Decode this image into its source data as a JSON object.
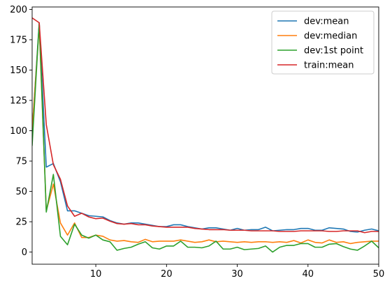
{
  "chart_data": {
    "type": "line",
    "xlim": [
      1,
      50
    ],
    "ylim": [
      -10,
      202
    ],
    "x_ticks": [
      10,
      20,
      30,
      40,
      50
    ],
    "y_ticks": [
      0,
      25,
      50,
      75,
      100,
      125,
      150,
      175,
      200
    ],
    "legend_position": "top-right",
    "grid": false,
    "series": [
      {
        "name": "dev:mean",
        "color": "#1f77b4",
        "x": [
          1,
          2,
          3,
          4,
          5,
          6,
          7,
          8,
          9,
          10,
          11,
          12,
          13,
          14,
          15,
          16,
          17,
          18,
          19,
          20,
          21,
          22,
          23,
          24,
          25,
          26,
          27,
          28,
          29,
          30,
          31,
          32,
          33,
          34,
          35,
          36,
          37,
          38,
          39,
          40,
          41,
          42,
          43,
          44,
          45,
          46,
          47,
          48,
          49,
          50
        ],
        "y": [
          100,
          189,
          70,
          73,
          58,
          34,
          34,
          32,
          30,
          29.5,
          29,
          26,
          24,
          23,
          24,
          24,
          23,
          22,
          21,
          21,
          22.5,
          22.5,
          21,
          20,
          19,
          20,
          20,
          19,
          18,
          19.5,
          18,
          18.5,
          18.5,
          20.5,
          17.5,
          18,
          18.5,
          18.5,
          19.5,
          19.5,
          18,
          18,
          20,
          19.5,
          19,
          17,
          16.5,
          18,
          19,
          17.5
        ]
      },
      {
        "name": "dev:median",
        "color": "#ff7f0e",
        "x": [
          1,
          2,
          3,
          4,
          5,
          6,
          7,
          8,
          9,
          10,
          11,
          12,
          13,
          14,
          15,
          16,
          17,
          18,
          19,
          20,
          21,
          22,
          23,
          24,
          25,
          26,
          27,
          28,
          29,
          30,
          31,
          32,
          33,
          34,
          35,
          36,
          37,
          38,
          39,
          40,
          41,
          42,
          43,
          44,
          45,
          46,
          47,
          48,
          49,
          50
        ],
        "y": [
          100,
          186,
          34,
          56,
          24,
          14,
          24,
          12,
          12,
          14,
          13,
          10,
          9,
          9.5,
          8.5,
          8,
          10.5,
          8.5,
          9,
          9,
          9,
          10,
          9,
          8,
          8.5,
          10,
          8.5,
          9,
          8.5,
          8,
          8.5,
          8,
          8.5,
          8.5,
          8,
          8.5,
          8,
          9.5,
          7.5,
          10,
          8,
          7.5,
          10,
          8,
          8.5,
          7,
          8,
          8.5,
          9,
          9
        ]
      },
      {
        "name": "dev:1st point",
        "color": "#2ca02c",
        "x": [
          1,
          2,
          3,
          4,
          5,
          6,
          7,
          8,
          9,
          10,
          11,
          12,
          13,
          14,
          15,
          16,
          17,
          18,
          19,
          20,
          21,
          22,
          23,
          24,
          25,
          26,
          27,
          28,
          29,
          30,
          31,
          32,
          33,
          34,
          35,
          36,
          37,
          38,
          39,
          40,
          41,
          42,
          43,
          44,
          45,
          46,
          47,
          48,
          49,
          50
        ],
        "y": [
          88,
          189,
          33,
          64,
          13,
          6,
          23,
          14,
          11.5,
          14,
          10,
          8.5,
          1.5,
          3,
          4,
          6.5,
          8.5,
          3.5,
          2.5,
          5,
          5,
          9,
          4,
          4,
          3.5,
          5,
          9,
          2.5,
          2.5,
          4,
          2,
          2.5,
          3,
          5,
          0,
          4,
          5.5,
          5.5,
          7,
          7,
          4,
          4,
          6.5,
          7,
          4.5,
          2.5,
          1.5,
          5,
          9,
          3.5
        ]
      },
      {
        "name": "train:mean",
        "color": "#d62728",
        "x": [
          1,
          2,
          3,
          4,
          5,
          6,
          7,
          8,
          9,
          10,
          11,
          12,
          13,
          14,
          15,
          16,
          17,
          18,
          19,
          20,
          21,
          22,
          23,
          24,
          25,
          26,
          27,
          28,
          29,
          30,
          31,
          32,
          33,
          34,
          35,
          36,
          37,
          38,
          39,
          40,
          41,
          42,
          43,
          44,
          45,
          46,
          47,
          48,
          49,
          50
        ],
        "y": [
          193,
          189,
          105,
          72,
          60,
          38,
          29.5,
          32,
          29,
          27.5,
          28,
          25.5,
          23.5,
          23,
          23.5,
          22.5,
          22.5,
          21.5,
          21,
          20.5,
          20.5,
          20.5,
          20.5,
          19.5,
          19,
          18.5,
          18.5,
          18.5,
          18,
          18,
          18,
          17.5,
          17.5,
          17.5,
          17.5,
          17,
          17,
          17,
          17.5,
          17.5,
          17.5,
          17.5,
          17,
          17,
          17.5,
          17.5,
          17.5,
          16,
          17,
          17
        ]
      }
    ]
  }
}
